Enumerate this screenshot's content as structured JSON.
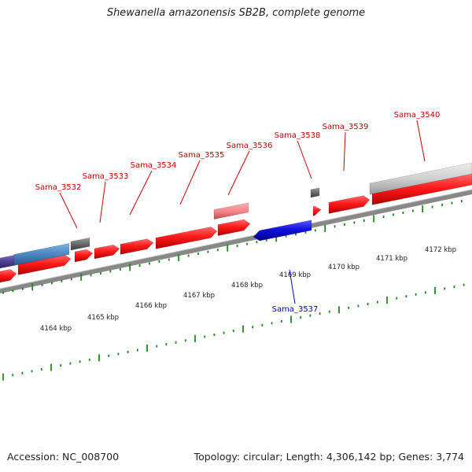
{
  "title": "Shewanella amazonensis SB2B, complete genome",
  "footer": {
    "accession": "Accession: NC_008700",
    "summary": "Topology: circular; Length: 4,306,142 bp; Genes: 3,774"
  },
  "colors": {
    "forward_gene": "#ff1a1a",
    "reverse_gene": "#1010e0",
    "tick": "#1a8a1a",
    "backbone": "#888888",
    "label_forward": "#cc0000",
    "label_reverse": "#0000cc",
    "pseudo_light": "#f08080",
    "gray_gene": "#6a6a6a",
    "light_gray_gene": "#cfcfcf",
    "blue_gene": "#4a86c0",
    "purple_gene": "#4c3f8f"
  },
  "kbp_labels": [
    "4164 kbp",
    "4165 kbp",
    "4166 kbp",
    "4167 kbp",
    "4168 kbp",
    "4169 kbp",
    "4170 kbp",
    "4171 kbp",
    "4172 kbp"
  ],
  "gene_labels": [
    {
      "name": "Sama_3532",
      "strand": "forward"
    },
    {
      "name": "Sama_3533",
      "strand": "forward"
    },
    {
      "name": "Sama_3534",
      "strand": "forward"
    },
    {
      "name": "Sama_3535",
      "strand": "forward"
    },
    {
      "name": "Sama_3536",
      "strand": "forward"
    },
    {
      "name": "Sama_3538",
      "strand": "forward"
    },
    {
      "name": "Sama_3539",
      "strand": "forward"
    },
    {
      "name": "Sama_3540",
      "strand": "forward"
    },
    {
      "name": "Sama_3537",
      "strand": "reverse"
    }
  ]
}
